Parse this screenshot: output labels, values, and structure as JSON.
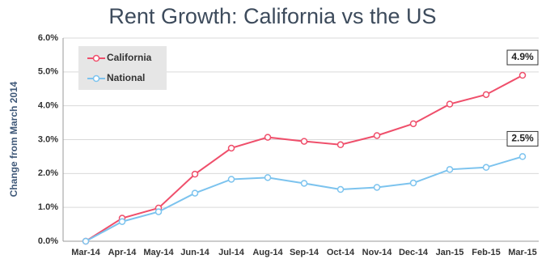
{
  "chart_data": {
    "type": "line",
    "title": "Rent Growth: California vs the US",
    "y_label": "Change from March 2014",
    "categories": [
      "Mar-14",
      "Apr-14",
      "May-14",
      "Jun-14",
      "Jul-14",
      "Aug-14",
      "Sep-14",
      "Oct-14",
      "Nov-14",
      "Dec-14",
      "Jan-15",
      "Feb-15",
      "Mar-15"
    ],
    "series": [
      {
        "name": "California",
        "color": "#ef4f6b",
        "values": [
          0,
          0.68,
          0.98,
          1.98,
          2.75,
          3.07,
          2.95,
          2.85,
          3.12,
          3.47,
          4.05,
          4.33,
          4.9
        ],
        "value_labels": [
          null,
          null,
          null,
          null,
          null,
          null,
          null,
          null,
          null,
          null,
          null,
          null,
          "4.9%"
        ]
      },
      {
        "name": "National",
        "color": "#7cc3ee",
        "values": [
          0,
          0.58,
          0.87,
          1.42,
          1.83,
          1.88,
          1.71,
          1.53,
          1.59,
          1.72,
          2.12,
          2.18,
          2.5
        ],
        "value_labels": [
          null,
          null,
          null,
          null,
          null,
          null,
          null,
          null,
          null,
          null,
          null,
          null,
          "2.5%"
        ]
      }
    ],
    "ylim": [
      0,
      6
    ],
    "yticks": [
      {
        "value": 0,
        "label": "0.0%"
      },
      {
        "value": 1,
        "label": "1.0%"
      },
      {
        "value": 2,
        "label": "2.0%"
      },
      {
        "value": 3,
        "label": "3.0%"
      },
      {
        "value": 4,
        "label": "4.0%"
      },
      {
        "value": 5,
        "label": "5.0%"
      },
      {
        "value": 6,
        "label": "6.0%"
      }
    ],
    "grid": true,
    "legend": "upper-left"
  }
}
